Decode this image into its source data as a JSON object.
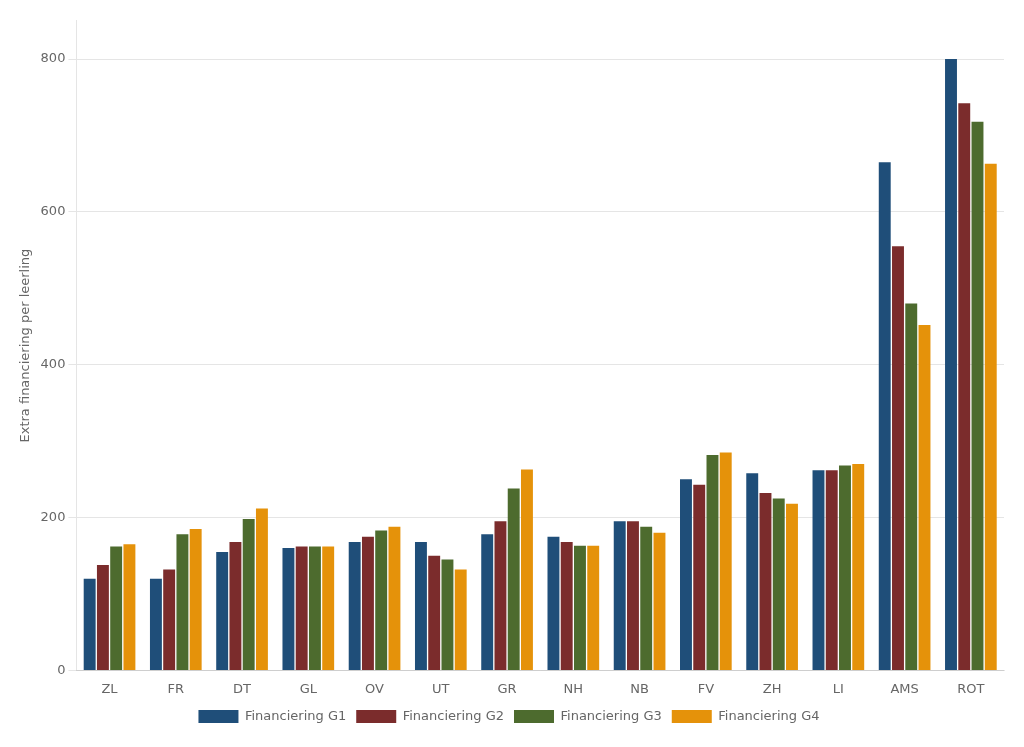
{
  "chart_data": {
    "type": "bar",
    "ylabel": "Extra financiering per leerling",
    "categories": [
      "ZL",
      "FR",
      "DT",
      "GL",
      "OV",
      "UT",
      "GR",
      "NH",
      "NB",
      "FV",
      "ZH",
      "LI",
      "AMS",
      "ROT"
    ],
    "series": [
      {
        "name": "Financiering G1",
        "color": "#1f4e79",
        "values": [
          120,
          120,
          155,
          160,
          168,
          168,
          178,
          175,
          195,
          250,
          258,
          262,
          665,
          800
        ]
      },
      {
        "name": "Financiering G2",
        "color": "#7b2c2c",
        "values": [
          138,
          132,
          168,
          162,
          175,
          150,
          195,
          168,
          195,
          243,
          232,
          262,
          555,
          742
        ]
      },
      {
        "name": "Financiering G3",
        "color": "#4d6b2e",
        "values": [
          162,
          178,
          198,
          162,
          183,
          145,
          238,
          163,
          188,
          282,
          225,
          268,
          480,
          718
        ]
      },
      {
        "name": "Financiering G4",
        "color": "#e5920a",
        "values": [
          165,
          185,
          212,
          162,
          188,
          132,
          263,
          163,
          180,
          285,
          218,
          270,
          452,
          663
        ]
      }
    ],
    "ylim": [
      0,
      850
    ],
    "yticks": [
      0,
      200,
      400,
      600,
      800
    ],
    "grid": true,
    "legend": "bottom"
  }
}
